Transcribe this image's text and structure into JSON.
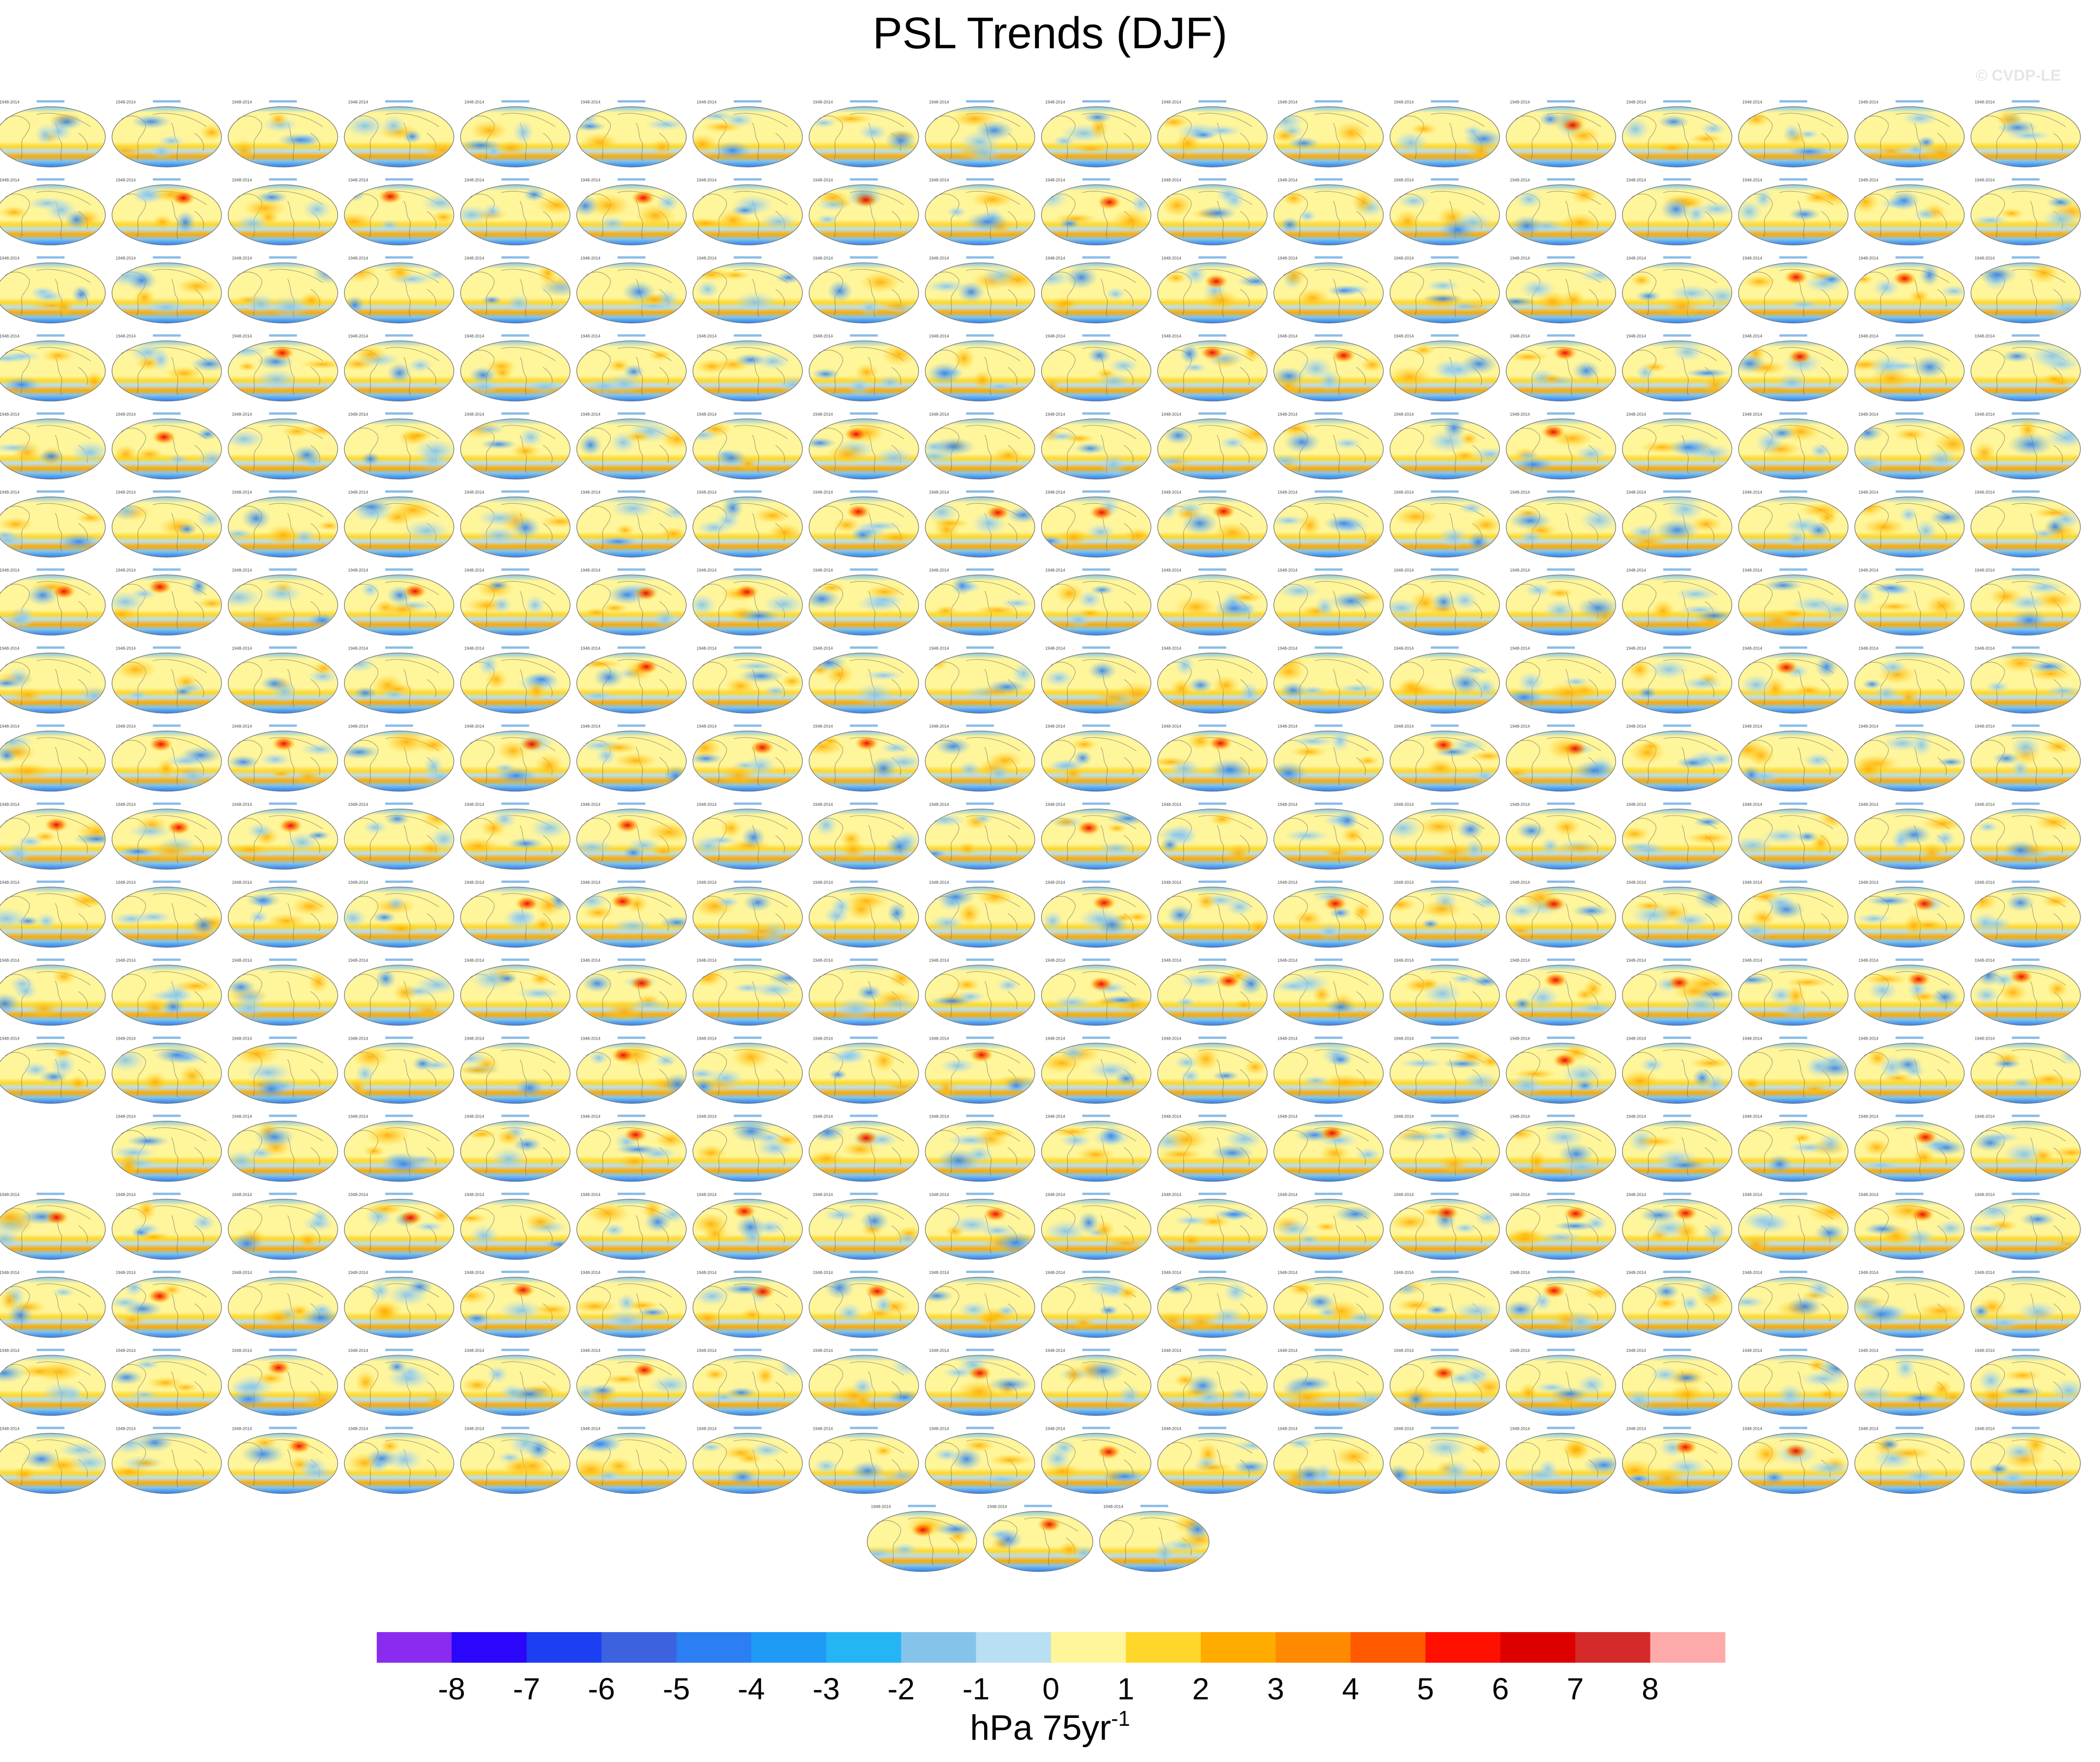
{
  "title": "PSL Trends (DJF)",
  "watermark": "© CVDP-LE",
  "chart_data": {
    "type": "heatmap",
    "title": "PSL Trends (DJF)",
    "panel_grid": {
      "rows": 18,
      "columns": 18,
      "row_panel_counts": [
        18,
        18,
        18,
        18,
        18,
        18,
        18,
        18,
        18,
        18,
        18,
        18,
        18,
        17,
        18,
        18,
        18,
        18
      ],
      "row_start_columns": [
        0,
        0,
        0,
        0,
        0,
        0,
        0,
        0,
        0,
        0,
        0,
        0,
        0,
        1,
        0,
        0,
        0,
        0
      ],
      "extra_row_panels": 3,
      "extra_row_start_column": 7.5
    },
    "panels_total": 326,
    "panel_period_label": "1948-2014",
    "colorbar": {
      "ticks": [
        "-8",
        "-7",
        "-6",
        "-5",
        "-4",
        "-3",
        "-2",
        "-1",
        "0",
        "1",
        "2",
        "3",
        "4",
        "5",
        "6",
        "7",
        "8"
      ],
      "colors": [
        "#8b2bef",
        "#2a06fa",
        "#1d3ff2",
        "#3c62e0",
        "#2b7ff2",
        "#1f9af5",
        "#25b5f5",
        "#84c4ea",
        "#b8dff2",
        "#fff59a",
        "#ffd72a",
        "#ffab00",
        "#ff8a00",
        "#ff5a00",
        "#ff0f00",
        "#dd0000",
        "#d52a2a",
        "#ffaaaa"
      ],
      "units_base": "hPa 75yr",
      "units_exponent": "-1"
    }
  }
}
